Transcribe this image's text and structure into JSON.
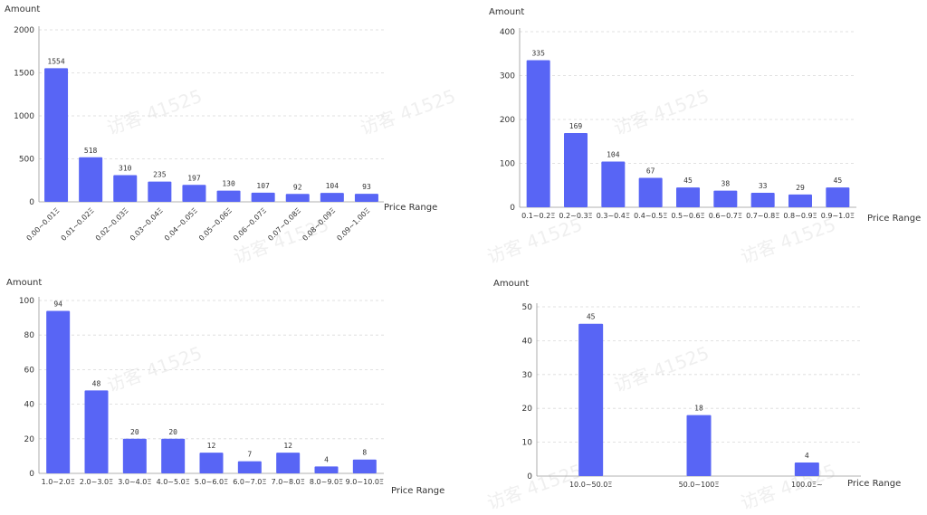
{
  "watermark_text": "访客 41525",
  "colors": {
    "bar": "#5865f5",
    "grid": "#d9d9d9",
    "axis": "#999999"
  },
  "chart_data": [
    {
      "type": "bar",
      "ylabel": "Amount",
      "xlabel": "Price Range",
      "ylim": [
        0,
        2000
      ],
      "yticks": [
        0,
        500,
        1000,
        1500,
        2000
      ],
      "categories": [
        "0.00~0.01Ξ",
        "0.01~0.02Ξ",
        "0.02~0.03Ξ",
        "0.03~0.04Ξ",
        "0.04~0.05Ξ",
        "0.05~0.06Ξ",
        "0.06~0.07Ξ",
        "0.07~0.08Ξ",
        "0.08~0.09Ξ",
        "0.09~1.00Ξ"
      ],
      "values": [
        1554,
        518,
        310,
        235,
        197,
        130,
        107,
        92,
        104,
        93
      ],
      "grid": true
    },
    {
      "type": "bar",
      "ylabel": "Amount",
      "xlabel": "Price Range",
      "ylim": [
        0,
        400
      ],
      "yticks": [
        0,
        100,
        200,
        300,
        400
      ],
      "categories": [
        "0.1~0.2Ξ",
        "0.2~0.3Ξ",
        "0.3~0.4Ξ",
        "0.4~0.5Ξ",
        "0.5~0.6Ξ",
        "0.6~0.7Ξ",
        "0.7~0.8Ξ",
        "0.8~0.9Ξ",
        "0.9~1.0Ξ"
      ],
      "values": [
        335,
        169,
        104,
        67,
        45,
        38,
        33,
        29,
        45
      ],
      "grid": true
    },
    {
      "type": "bar",
      "ylabel": "Amount",
      "xlabel": "Price Range",
      "ylim": [
        0,
        100
      ],
      "yticks": [
        0,
        20,
        40,
        60,
        80,
        100
      ],
      "categories": [
        "1.0~2.0Ξ",
        "2.0~3.0Ξ",
        "3.0~4.0Ξ",
        "4.0~5.0Ξ",
        "5.0~6.0Ξ",
        "6.0~7.0Ξ",
        "7.0~8.0Ξ",
        "8.0~9.0Ξ",
        "9.0~10.0Ξ"
      ],
      "values": [
        94,
        48,
        20,
        20,
        12,
        7,
        12,
        4,
        8
      ],
      "grid": true
    },
    {
      "type": "bar",
      "ylabel": "Amount",
      "xlabel": "Price Range",
      "ylim": [
        0,
        50
      ],
      "yticks": [
        0,
        10,
        20,
        30,
        40,
        50
      ],
      "categories": [
        "10.0~50.0Ξ",
        "50.0~100Ξ",
        "100.0Ξ~"
      ],
      "values": [
        45,
        18,
        4
      ],
      "grid": true
    }
  ]
}
